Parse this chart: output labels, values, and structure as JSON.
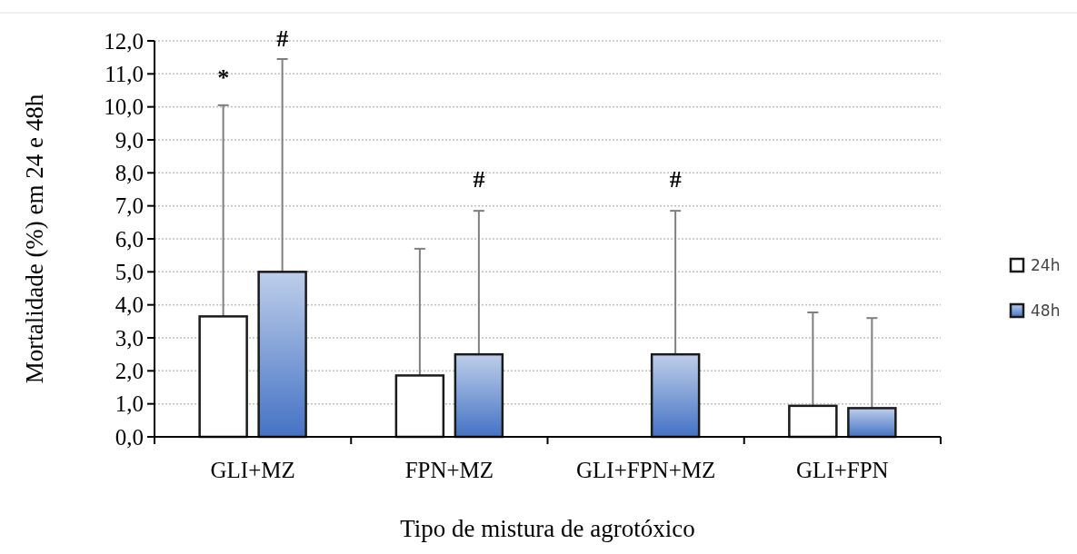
{
  "chart_data": {
    "type": "bar",
    "xlabel": "Tipo  de mistura  de agrotóxico",
    "ylabel": "Mortalidade  (%) em 24 e 48h",
    "categories": [
      "GLI+MZ",
      "FPN+MZ",
      "GLI+FPN+MZ",
      "GLI+FPN"
    ],
    "series": [
      {
        "name": "24h",
        "color": "#ffffff",
        "values": [
          3.65,
          1.86,
          0,
          0.94
        ],
        "errors": [
          [
            3.65,
            10.05
          ],
          [
            1.86,
            5.7
          ],
          null,
          [
            0.94,
            3.77
          ]
        ]
      },
      {
        "name": "48h",
        "color": "#4472c4",
        "values": [
          5.0,
          2.5,
          2.5,
          0.87
        ],
        "errors": [
          [
            5.0,
            11.45
          ],
          [
            2.5,
            6.85
          ],
          [
            2.5,
            6.85
          ],
          [
            0.87,
            3.6
          ]
        ]
      }
    ],
    "ylim": [
      0,
      12
    ],
    "yticks": [
      {
        "value": 0,
        "label": "0,0"
      },
      {
        "value": 1,
        "label": "1,0"
      },
      {
        "value": 2,
        "label": "2,0"
      },
      {
        "value": 3,
        "label": "3,0"
      },
      {
        "value": 4,
        "label": "4,0"
      },
      {
        "value": 5,
        "label": "5,0"
      },
      {
        "value": 6,
        "label": "6,0"
      },
      {
        "value": 7,
        "label": "7,0"
      },
      {
        "value": 8,
        "label": "8,0"
      },
      {
        "value": 9,
        "label": "9,0"
      },
      {
        "value": 10,
        "label": "10,0"
      },
      {
        "value": 11,
        "label": "11,0"
      },
      {
        "value": 12,
        "label": "12,0"
      }
    ],
    "annotations": [
      "*",
      "#",
      "#",
      "#"
    ],
    "grid": "y",
    "legend": "right"
  }
}
